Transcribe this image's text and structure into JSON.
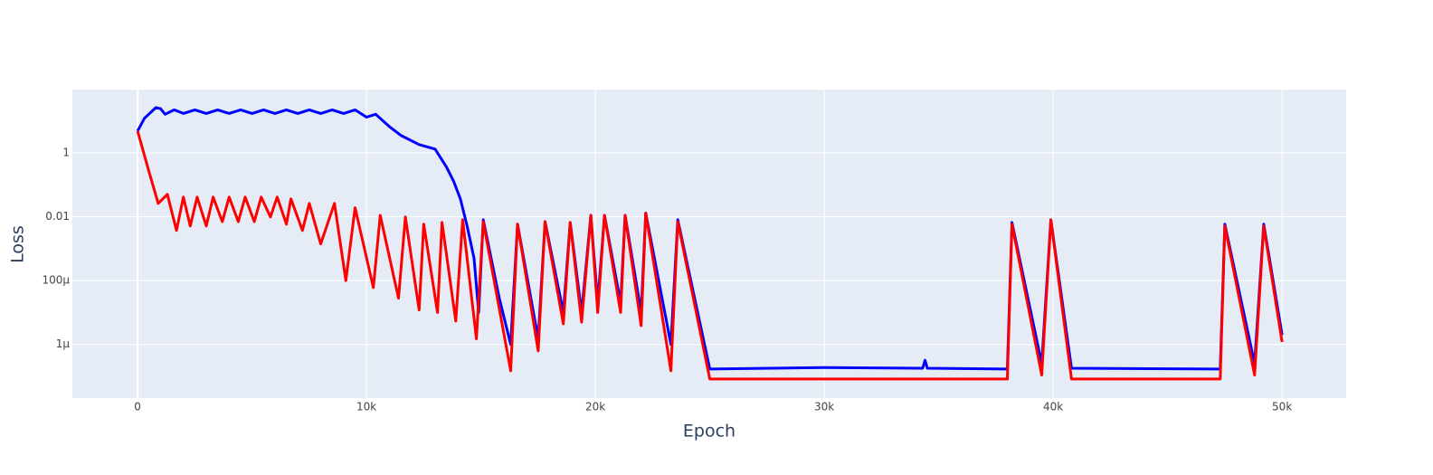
{
  "chart_data": {
    "type": "line",
    "x_label": "Epoch",
    "y_label": "Loss",
    "log_y": true,
    "grid": true,
    "background": "#e5ecf6",
    "xlim": [
      -2850,
      52800
    ],
    "ylim": [
      2.1e-08,
      95
    ],
    "xticks": [
      0,
      {
        "value": 10000,
        "label": "10k"
      },
      {
        "value": 20000,
        "label": "20k"
      },
      {
        "value": 30000,
        "label": "30k"
      },
      {
        "value": 40000,
        "label": "40k"
      },
      {
        "value": 50000,
        "label": "50k"
      }
    ],
    "yticks": [
      1,
      0.01,
      {
        "value": 0.0001,
        "label": "100µ"
      },
      {
        "value": 1e-06,
        "label": "1µ"
      }
    ],
    "series": [
      {
        "color": "#0000ff",
        "x": [
          0,
          300,
          800,
          1000,
          1200,
          1600,
          2000,
          2500,
          3000,
          3500,
          4000,
          4500,
          5000,
          5500,
          6000,
          6500,
          7000,
          7500,
          8000,
          8500,
          9000,
          9500,
          10000,
          10400,
          11000,
          11500,
          12300,
          13000,
          13500,
          13800,
          14100,
          14400,
          14700,
          14900,
          15100,
          15800,
          16300,
          16600,
          17500,
          17800,
          18600,
          18900,
          19400,
          19800,
          20100,
          20400,
          21100,
          21300,
          22000,
          22200,
          23300,
          23600,
          25000,
          30000,
          34300,
          34400,
          34500,
          38000,
          38200,
          39500,
          39900,
          40800,
          47300,
          47500,
          48800,
          49200,
          50000
        ],
        "values": [
          4.8,
          12,
          26,
          24,
          16,
          22,
          17,
          22,
          17,
          22,
          17,
          22,
          17,
          22,
          17,
          22,
          17,
          22,
          17,
          22,
          17,
          22,
          13,
          16,
          6.6,
          3.5,
          1.8,
          1.3,
          0.35,
          0.13,
          0.036,
          0.005,
          0.0005,
          1e-05,
          0.008,
          2.8e-05,
          1e-06,
          0.0058,
          1.5e-06,
          0.007,
          1e-05,
          0.0066,
          1e-05,
          0.011,
          2e-05,
          0.011,
          2e-05,
          0.011,
          1e-05,
          0.013,
          1e-06,
          0.008,
          1.7e-07,
          1.9e-07,
          1.8e-07,
          3.2e-07,
          1.8e-07,
          1.7e-07,
          0.0066,
          2.5e-07,
          0.008,
          1.8e-07,
          1.7e-07,
          0.0058,
          2.5e-07,
          0.0058,
          2e-06
        ]
      },
      {
        "color": "#ff0000",
        "x": [
          0,
          500,
          900,
          1300,
          1700,
          2000,
          2300,
          2600,
          3000,
          3300,
          3700,
          4000,
          4400,
          4700,
          5100,
          5400,
          5800,
          6100,
          6500,
          6700,
          7200,
          7500,
          8000,
          8600,
          9100,
          9500,
          10300,
          10600,
          11400,
          11700,
          12300,
          12500,
          13100,
          13300,
          13900,
          14200,
          14800,
          15100,
          16300,
          16600,
          17500,
          17800,
          18600,
          18900,
          19400,
          19800,
          20100,
          20400,
          21100,
          21300,
          22000,
          22200,
          23300,
          23600,
          25000,
          30000,
          38000,
          38200,
          39500,
          39900,
          40800,
          47300,
          47500,
          48800,
          49200,
          50000
        ],
        "values": [
          4.8,
          0.25,
          0.026,
          0.05,
          0.0037,
          0.041,
          0.0051,
          0.041,
          0.0051,
          0.041,
          0.007,
          0.041,
          0.007,
          0.041,
          0.007,
          0.041,
          0.0098,
          0.041,
          0.0058,
          0.036,
          0.0037,
          0.026,
          0.0014,
          0.026,
          0.0001,
          0.019,
          6e-05,
          0.011,
          2.8e-05,
          0.0098,
          1.2e-05,
          0.0058,
          1e-05,
          0.0066,
          5.4e-06,
          0.008,
          1.5e-06,
          0.007,
          1.5e-07,
          0.0058,
          6.3e-07,
          0.007,
          4.4e-06,
          0.0066,
          5e-06,
          0.011,
          1e-05,
          0.011,
          1e-05,
          0.011,
          3.9e-06,
          0.013,
          1.5e-07,
          0.007,
          8.3e-08,
          8.3e-08,
          8.3e-08,
          0.0058,
          1.1e-07,
          0.008,
          8.3e-08,
          8.3e-08,
          0.0051,
          1.1e-07,
          0.0051,
          1.2e-06
        ]
      }
    ]
  }
}
